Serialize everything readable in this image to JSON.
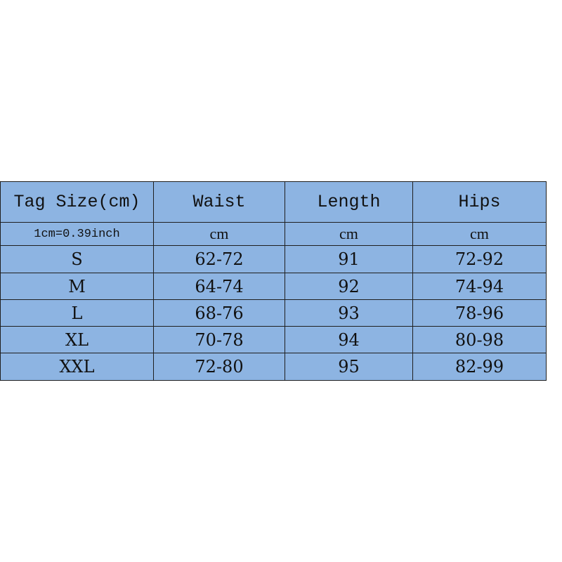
{
  "table": {
    "header": [
      "Tag Size(cm)",
      "Waist",
      "Length",
      "Hips"
    ],
    "units": [
      "1cm=0.39inch",
      "cm",
      "cm",
      "cm"
    ],
    "rows": [
      [
        "S",
        "62-72",
        "91",
        "72-92"
      ],
      [
        "M",
        "64-74",
        "92",
        "74-94"
      ],
      [
        "L",
        "68-76",
        "93",
        "78-96"
      ],
      [
        "XL",
        "70-78",
        "94",
        "80-98"
      ],
      [
        "XXL",
        "72-80",
        "95",
        "82-99"
      ]
    ]
  }
}
